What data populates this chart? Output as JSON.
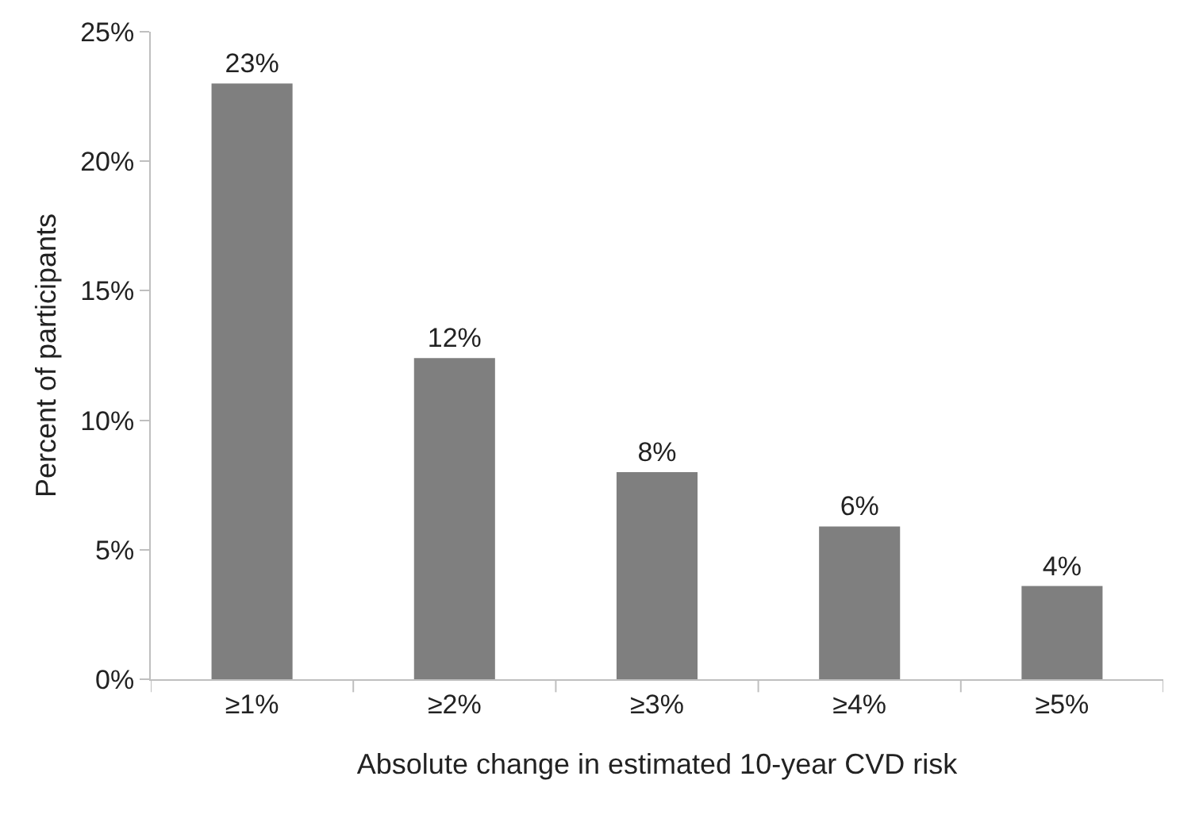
{
  "chart_data": {
    "type": "bar",
    "xlabel": "Absolute change in estimated 10-year CVD risk",
    "ylabel": "Percent of participants",
    "categories": [
      "≥1%",
      "≥2%",
      "≥3%",
      "≥4%",
      "≥5%"
    ],
    "values": [
      23.0,
      12.4,
      8.0,
      5.9,
      3.6
    ],
    "value_labels": [
      "23%",
      "12%",
      "8%",
      "6%",
      "4%"
    ],
    "color": "#7f7f7f",
    "ylim": [
      0,
      25
    ],
    "yticks": [
      {
        "value": 0,
        "label": "0%"
      },
      {
        "value": 5,
        "label": "5%"
      },
      {
        "value": 10,
        "label": "10%"
      },
      {
        "value": 15,
        "label": "15%"
      },
      {
        "value": 20,
        "label": "20%"
      },
      {
        "value": 25,
        "label": "25%"
      }
    ],
    "tick_labels": true
  }
}
